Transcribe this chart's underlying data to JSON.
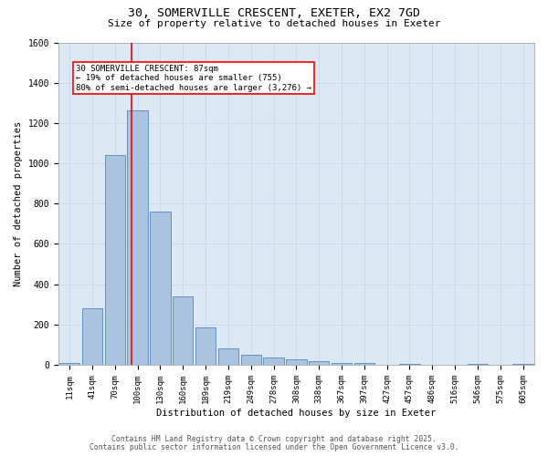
{
  "title_line1": "30, SOMERVILLE CRESCENT, EXETER, EX2 7GD",
  "title_line2": "Size of property relative to detached houses in Exeter",
  "xlabel": "Distribution of detached houses by size in Exeter",
  "ylabel": "Number of detached properties",
  "bar_labels": [
    "11sqm",
    "41sqm",
    "70sqm",
    "100sqm",
    "130sqm",
    "160sqm",
    "189sqm",
    "219sqm",
    "249sqm",
    "278sqm",
    "308sqm",
    "338sqm",
    "367sqm",
    "397sqm",
    "427sqm",
    "457sqm",
    "486sqm",
    "516sqm",
    "546sqm",
    "575sqm",
    "605sqm"
  ],
  "bar_values": [
    10,
    280,
    1040,
    1265,
    760,
    340,
    185,
    80,
    48,
    37,
    25,
    18,
    10,
    8,
    0,
    5,
    0,
    0,
    5,
    0,
    5
  ],
  "bar_color": "#aac4e0",
  "bar_edgecolor": "#5585c0",
  "grid_color": "#c8d8ec",
  "background_color": "#dce8f4",
  "annotation_text": "30 SOMERVILLE CRESCENT: 87sqm\n← 19% of detached houses are smaller (755)\n80% of semi-detached houses are larger (3,276) →",
  "annotation_box_color": "white",
  "annotation_box_edgecolor": "red",
  "vline_x": 2.72,
  "vline_color": "red",
  "ylim": [
    0,
    1600
  ],
  "yticks": [
    0,
    200,
    400,
    600,
    800,
    1000,
    1200,
    1400,
    1600
  ],
  "footer_line1": "Contains HM Land Registry data © Crown copyright and database right 2025.",
  "footer_line2": "Contains public sector information licensed under the Open Government Licence v3.0."
}
